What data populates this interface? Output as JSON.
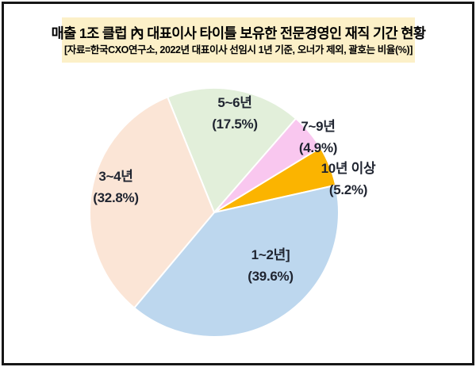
{
  "header": {
    "title": "매출 1조 클럽 內 대표이사 타이틀 보유한 전문경영인 재직 기간 현황",
    "subtitle": "[자료=한국CXO연구소, 2022년 대표이사 선임시 1년 기준, 오너가 제외, 괄호는 비율(%)]",
    "background_color": "#fcf0c8",
    "text_color": "#000000"
  },
  "chart_data": {
    "type": "pie",
    "title": "매출 1조 클럽 內 대표이사 타이틀 보유한 전문경영인 재직 기간 현황",
    "source_note": "[자료=한국CXO연구소, 2022년 대표이사 선임시 1년 기준, 오너가 제외, 괄호는 비율(%)]",
    "unit": "%",
    "total": 100,
    "legend_position": "none",
    "labels_on_chart": true,
    "label_color": "#1f2430",
    "slice_border_color": "#ffffff",
    "start_angle_deg": -22,
    "center": [
      270,
      268
    ],
    "radius": 157,
    "slices": [
      {
        "label": "5~6년",
        "value": 17.5,
        "display": "(17.5%)",
        "color": "#e2efda"
      },
      {
        "label": "7~9년",
        "value": 4.9,
        "display": "(4.9%)",
        "color": "#f9c7ef"
      },
      {
        "label": "10년 이상",
        "value": 5.2,
        "display": "(5.2%)",
        "color": "#fbb400"
      },
      {
        "label": "1~2년]",
        "value": 39.6,
        "display": "(39.6%)",
        "color": "#bdd7ee"
      },
      {
        "label": "3~4년",
        "value": 32.8,
        "display": "(32.8%)",
        "color": "#fbe5d6"
      }
    ]
  }
}
